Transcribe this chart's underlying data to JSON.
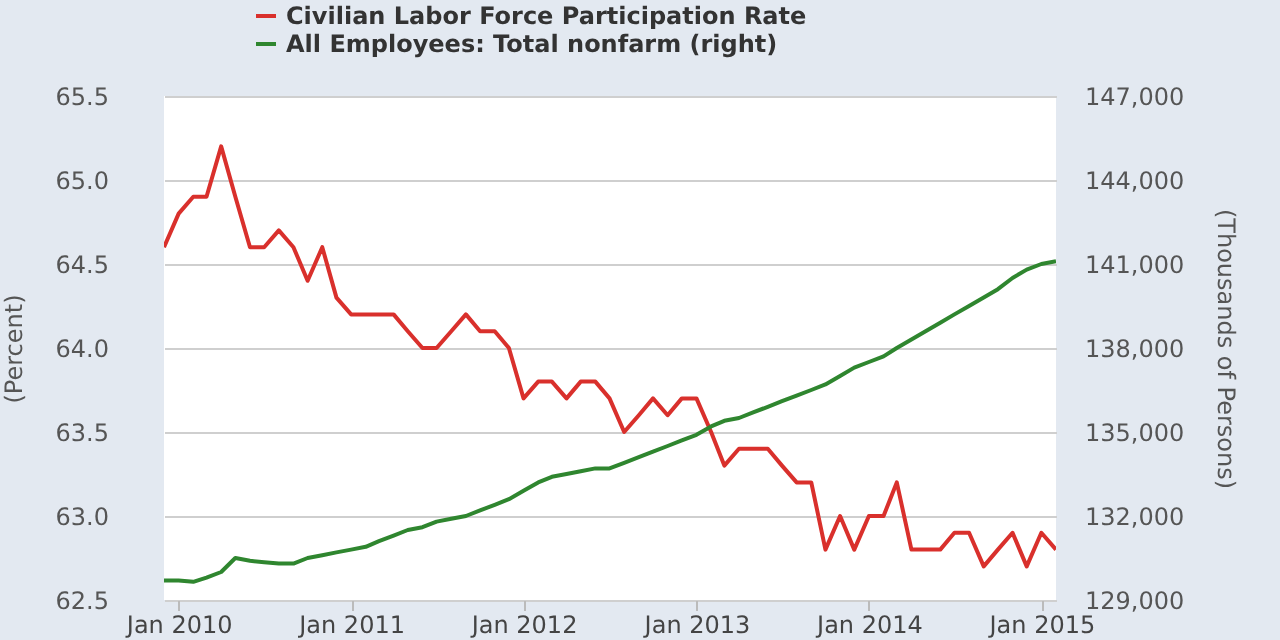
{
  "chart_data": {
    "type": "line",
    "ylabel": "(Percent)",
    "y2label": "(Thousands of Persons)",
    "x": [
      "2009-12",
      "2010-01",
      "2010-02",
      "2010-03",
      "2010-04",
      "2010-05",
      "2010-06",
      "2010-07",
      "2010-08",
      "2010-09",
      "2010-10",
      "2010-11",
      "2010-12",
      "2011-01",
      "2011-02",
      "2011-03",
      "2011-04",
      "2011-05",
      "2011-06",
      "2011-07",
      "2011-08",
      "2011-09",
      "2011-10",
      "2011-11",
      "2011-12",
      "2012-01",
      "2012-02",
      "2012-03",
      "2012-04",
      "2012-05",
      "2012-06",
      "2012-07",
      "2012-08",
      "2012-09",
      "2012-10",
      "2012-11",
      "2012-12",
      "2013-01",
      "2013-02",
      "2013-03",
      "2013-04",
      "2013-05",
      "2013-06",
      "2013-07",
      "2013-08",
      "2013-09",
      "2013-10",
      "2013-11",
      "2013-12",
      "2014-01",
      "2014-02",
      "2014-03",
      "2014-04",
      "2014-05",
      "2014-06",
      "2014-07",
      "2014-08",
      "2014-09",
      "2014-10",
      "2014-11",
      "2014-12",
      "2015-01",
      "2015-02"
    ],
    "series": [
      {
        "name": "Civilian Labor Force Participation Rate",
        "color": "#d9302c",
        "values": [
          64.6,
          64.8,
          64.9,
          64.9,
          65.2,
          64.9,
          64.6,
          64.6,
          64.7,
          64.6,
          64.4,
          64.6,
          64.3,
          64.2,
          64.2,
          64.2,
          64.2,
          64.1,
          64.0,
          64.0,
          64.1,
          64.2,
          64.1,
          64.1,
          64.0,
          63.7,
          63.8,
          63.8,
          63.7,
          63.8,
          63.8,
          63.7,
          63.5,
          63.6,
          63.7,
          63.6,
          63.7,
          63.7,
          63.5,
          63.3,
          63.4,
          63.4,
          63.4,
          63.3,
          63.2,
          63.2,
          62.8,
          63.0,
          62.8,
          63.0,
          63.0,
          63.2,
          62.8,
          62.8,
          62.8,
          62.9,
          62.9,
          62.7,
          62.8,
          62.9,
          62.7,
          62.9,
          62.8
        ]
      },
      {
        "name": "All Employees: Total nonfarm (right)",
        "color": "#2f862f",
        "axis": "y2",
        "values": [
          129700,
          129700,
          129650,
          129800,
          130000,
          130500,
          130400,
          130350,
          130300,
          130300,
          130500,
          130600,
          130700,
          130800,
          130900,
          131100,
          131300,
          131500,
          131600,
          131800,
          131900,
          132000,
          132200,
          132400,
          132600,
          132900,
          133200,
          133400,
          133500,
          133600,
          133700,
          133700,
          133900,
          134100,
          134300,
          134500,
          134700,
          134900,
          135200,
          135400,
          135500,
          135700,
          135900,
          136100,
          136300,
          136500,
          136700,
          137000,
          137300,
          137500,
          137700,
          138000,
          138300,
          138600,
          138900,
          139200,
          139500,
          139800,
          140100,
          140500,
          140800,
          141000,
          141100
        ]
      }
    ],
    "xlim": [
      "2009-12",
      "2015-02"
    ],
    "xticks": [
      {
        "value": "2010-01",
        "label": "Jan 2010"
      },
      {
        "value": "2011-01",
        "label": "Jan 2011"
      },
      {
        "value": "2012-01",
        "label": "Jan 2012"
      },
      {
        "value": "2013-01",
        "label": "Jan 2013"
      },
      {
        "value": "2014-01",
        "label": "Jan 2014"
      },
      {
        "value": "2015-01",
        "label": "Jan 2015"
      }
    ],
    "ylim": [
      62.5,
      65.5
    ],
    "yticks": [
      62.5,
      {
        "value": 63,
        "label": "63.0"
      },
      63.5,
      {
        "value": 64,
        "label": "64.0"
      },
      64.5,
      {
        "value": 65,
        "label": "65.0"
      },
      65.5
    ],
    "y2lim": [
      129000,
      147000
    ],
    "y2ticks": [
      {
        "value": 129000,
        "label": "129,000"
      },
      {
        "value": 132000,
        "label": "132,000"
      },
      {
        "value": 135000,
        "label": "135,000"
      },
      {
        "value": 138000,
        "label": "138,000"
      },
      {
        "value": 141000,
        "label": "141,000"
      },
      {
        "value": 144000,
        "label": "144,000"
      },
      {
        "value": 147000,
        "label": "147,000"
      }
    ],
    "grid": "y",
    "legend": "top left"
  }
}
